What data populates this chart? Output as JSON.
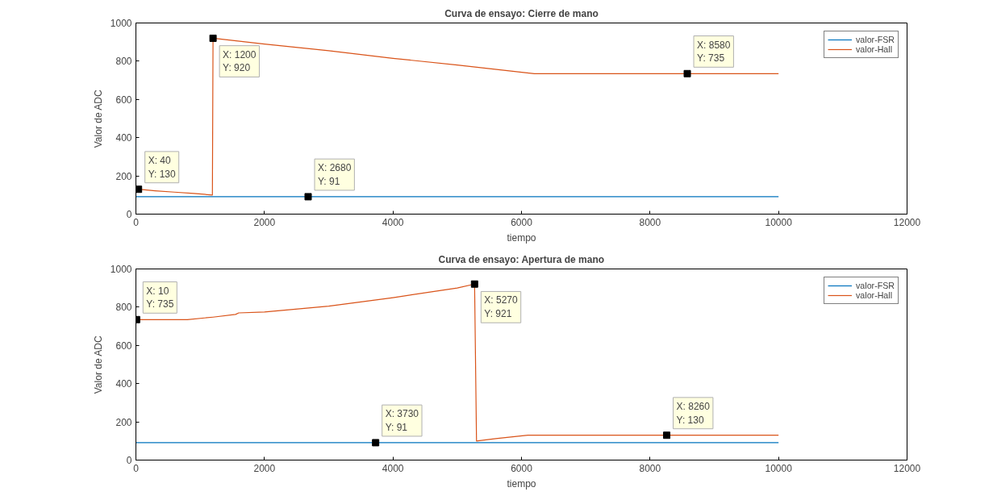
{
  "chart_data": [
    {
      "type": "line",
      "title": "Curva de ensayo: Cierre de mano",
      "xlabel": "tiempo",
      "ylabel": "Valor de ADC",
      "xlim": [
        0,
        12000
      ],
      "xticks": [
        0,
        2000,
        4000,
        6000,
        8000,
        10000,
        12000
      ],
      "ylim": [
        0,
        1000
      ],
      "yticks": [
        0,
        200,
        400,
        600,
        800,
        1000
      ],
      "grid": false,
      "legend": "top right",
      "marker": "none",
      "line_style": "solid",
      "series": [
        {
          "name": "valor-FSR",
          "color": "#0072bd",
          "x": [
            0,
            2680,
            10000
          ],
          "values": [
            91,
            91,
            91
          ]
        },
        {
          "name": "valor-Hall",
          "color": "#d95319",
          "x": [
            40,
            300,
            600,
            900,
            1190,
            1200,
            2000,
            3000,
            4000,
            5000,
            6200,
            7000,
            8580,
            10000
          ],
          "values": [
            130,
            122,
            115,
            108,
            100,
            920,
            890,
            855,
            815,
            780,
            735,
            735,
            735,
            735
          ]
        }
      ],
      "annotations": [
        {
          "text": "X: 40\nY: 130",
          "x": 40,
          "y": 130
        },
        {
          "text": "X: 1200\nY: 920",
          "x": 1200,
          "y": 920
        },
        {
          "text": "X: 2680\nY: 91",
          "x": 2680,
          "y": 91
        },
        {
          "text": "X: 8580\nY: 735",
          "x": 8580,
          "y": 735
        }
      ]
    },
    {
      "type": "line",
      "title": "Curva de ensayo: Apertura de mano",
      "xlabel": "tiempo",
      "ylabel": "Valor de ADC",
      "xlim": [
        0,
        12000
      ],
      "xticks": [
        0,
        2000,
        4000,
        6000,
        8000,
        10000,
        12000
      ],
      "ylim": [
        0,
        1000
      ],
      "yticks": [
        0,
        200,
        400,
        600,
        800,
        1000
      ],
      "grid": false,
      "legend": "top right",
      "marker": "none",
      "line_style": "solid",
      "series": [
        {
          "name": "valor-FSR",
          "color": "#0072bd",
          "x": [
            0,
            3730,
            10000
          ],
          "values": [
            91,
            91,
            91
          ]
        },
        {
          "name": "valor-Hall",
          "color": "#d95319",
          "x": [
            10,
            400,
            800,
            1200,
            1550,
            1600,
            2000,
            3000,
            4000,
            5000,
            5270,
            5300,
            5600,
            6100,
            8260,
            10000
          ],
          "values": [
            735,
            735,
            735,
            748,
            762,
            770,
            775,
            805,
            850,
            900,
            921,
            100,
            112,
            130,
            130,
            130
          ]
        }
      ],
      "annotations": [
        {
          "text": "X: 10\nY: 735",
          "x": 10,
          "y": 735
        },
        {
          "text": "X: 5270\nY: 921",
          "x": 5270,
          "y": 921
        },
        {
          "text": "X: 3730\nY: 91",
          "x": 3730,
          "y": 91
        },
        {
          "text": "X: 8260\nY: 130",
          "x": 8260,
          "y": 130
        }
      ]
    }
  ]
}
